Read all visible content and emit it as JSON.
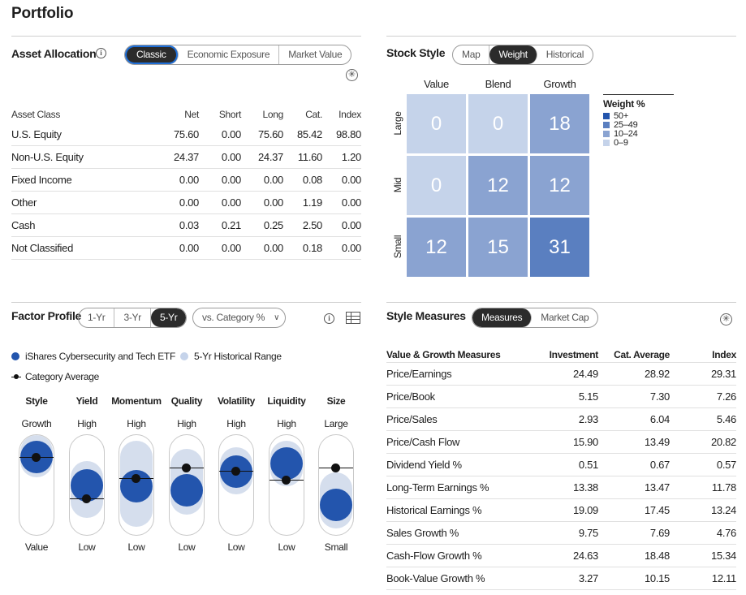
{
  "page": {
    "title": "Portfolio"
  },
  "asset_allocation": {
    "title": "Asset Allocation",
    "info_icon": "info-icon",
    "tabs": [
      {
        "label": "Classic",
        "active": true
      },
      {
        "label": "Economic Exposure",
        "active": false
      },
      {
        "label": "Market Value",
        "active": false
      }
    ],
    "expand_icon": "plus-circle-icon",
    "columns": [
      "Asset Class",
      "Net",
      "Short",
      "Long",
      "Cat.",
      "Index"
    ],
    "rows": [
      [
        "U.S. Equity",
        "75.60",
        "0.00",
        "75.60",
        "85.42",
        "98.80"
      ],
      [
        "Non-U.S. Equity",
        "24.37",
        "0.00",
        "24.37",
        "11.60",
        "1.20"
      ],
      [
        "Fixed Income",
        "0.00",
        "0.00",
        "0.00",
        "0.08",
        "0.00"
      ],
      [
        "Other",
        "0.00",
        "0.00",
        "0.00",
        "1.19",
        "0.00"
      ],
      [
        "Cash",
        "0.03",
        "0.21",
        "0.25",
        "2.50",
        "0.00"
      ],
      [
        "Not Classified",
        "0.00",
        "0.00",
        "0.00",
        "0.18",
        "0.00"
      ]
    ]
  },
  "stock_style": {
    "title": "Stock Style",
    "tabs": [
      {
        "label": "Map",
        "active": false
      },
      {
        "label": "Weight",
        "active": true
      },
      {
        "label": "Historical",
        "active": false
      }
    ],
    "col_labels": [
      "Value",
      "Blend",
      "Growth"
    ],
    "row_labels": [
      "Large",
      "Mid",
      "Small"
    ],
    "grid": [
      [
        "0",
        "0",
        "18"
      ],
      [
        "0",
        "12",
        "12"
      ],
      [
        "12",
        "15",
        "31"
      ]
    ],
    "legend": {
      "title": "Weight %",
      "items": [
        {
          "label": "50+",
          "color": "#2355ad"
        },
        {
          "label": "25–49",
          "color": "#5a7fc0"
        },
        {
          "label": "10–24",
          "color": "#8aa3d1"
        },
        {
          "label": "0–9",
          "color": "#c5d3ea"
        }
      ]
    }
  },
  "factor_profile": {
    "title": "Factor Profile",
    "tabs": [
      {
        "label": "1-Yr",
        "active": false
      },
      {
        "label": "3-Yr",
        "active": false
      },
      {
        "label": "5-Yr",
        "active": true
      }
    ],
    "compare_dropdown": "vs. Category %",
    "info_icon": "info-icon",
    "table_icon": "table-icon",
    "legend": {
      "fund": "iShares Cybersecurity and Tech ETF",
      "range": "5-Yr Historical Range",
      "category": "Category Average"
    },
    "factors": [
      {
        "name": "Style",
        "top": "Growth",
        "bottom": "Value",
        "fund": 0.92,
        "cat": 0.92,
        "range": [
          0.85,
          1.0
        ]
      },
      {
        "name": "Yield",
        "top": "High",
        "bottom": "Low",
        "fund": 0.5,
        "cat": 0.3,
        "range": [
          0.25,
          0.62
        ]
      },
      {
        "name": "Momentum",
        "top": "High",
        "bottom": "Low",
        "fund": 0.48,
        "cat": 0.6,
        "range": [
          0.12,
          0.92
        ]
      },
      {
        "name": "Quality",
        "top": "High",
        "bottom": "Low",
        "fund": 0.42,
        "cat": 0.76,
        "range": [
          0.3,
          0.8
        ]
      },
      {
        "name": "Volatility",
        "top": "High",
        "bottom": "Low",
        "fund": 0.7,
        "cat": 0.71,
        "range": [
          0.6,
          0.82
        ]
      },
      {
        "name": "Liquidity",
        "top": "High",
        "bottom": "Low",
        "fund": 0.82,
        "cat": 0.58,
        "range": [
          0.72,
          0.92
        ]
      },
      {
        "name": "Size",
        "top": "Large",
        "bottom": "Small",
        "fund": 0.2,
        "cat": 0.76,
        "range": [
          0.1,
          0.45
        ]
      }
    ]
  },
  "style_measures": {
    "title": "Style Measures",
    "tabs": [
      {
        "label": "Measures",
        "active": true
      },
      {
        "label": "Market Cap",
        "active": false
      }
    ],
    "expand_icon": "plus-circle-icon",
    "columns": [
      "Value & Growth Measures",
      "Investment",
      "Cat. Average",
      "Index"
    ],
    "rows": [
      [
        "Price/Earnings",
        "24.49",
        "28.92",
        "29.31"
      ],
      [
        "Price/Book",
        "5.15",
        "7.30",
        "7.26"
      ],
      [
        "Price/Sales",
        "2.93",
        "6.04",
        "5.46"
      ],
      [
        "Price/Cash Flow",
        "15.90",
        "13.49",
        "20.82"
      ],
      [
        "Dividend Yield %",
        "0.51",
        "0.67",
        "0.57"
      ],
      [
        "Long-Term Earnings %",
        "13.38",
        "13.47",
        "11.78"
      ],
      [
        "Historical Earnings %",
        "19.09",
        "17.45",
        "13.24"
      ],
      [
        "Sales Growth %",
        "9.75",
        "7.69",
        "4.76"
      ],
      [
        "Cash-Flow Growth %",
        "24.63",
        "18.48",
        "15.34"
      ],
      [
        "Book-Value Growth %",
        "3.27",
        "10.15",
        "12.11"
      ]
    ]
  }
}
